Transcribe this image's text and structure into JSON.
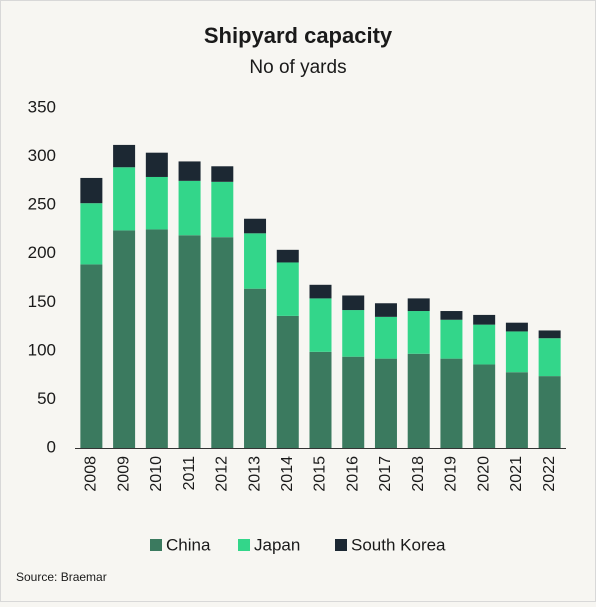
{
  "chart_data": {
    "type": "stacked_bar",
    "title": "Shipyard capacity",
    "subtitle": "No of yards",
    "categories": [
      "2008",
      "2009",
      "2010",
      "2011",
      "2012",
      "2013",
      "2014",
      "2015",
      "2016",
      "2017",
      "2018",
      "2019",
      "2020",
      "2021",
      "2022"
    ],
    "series": [
      {
        "name": "China",
        "color": "#3b7a5f",
        "values": [
          189,
          224,
          225,
          219,
          217,
          164,
          136,
          99,
          94,
          92,
          97,
          92,
          86,
          78,
          74
        ]
      },
      {
        "name": "Japan",
        "color": "#33d68a",
        "values": [
          63,
          65,
          54,
          56,
          57,
          57,
          55,
          55,
          48,
          43,
          44,
          40,
          41,
          42,
          39
        ]
      },
      {
        "name": "South Korea",
        "color": "#1c2833",
        "values": [
          26,
          23,
          25,
          20,
          16,
          15,
          13,
          14,
          15,
          14,
          13,
          9,
          10,
          9,
          8
        ]
      }
    ],
    "ylim": [
      0,
      350
    ],
    "yticks": [
      0,
      50,
      100,
      150,
      200,
      250,
      300,
      350
    ],
    "grid": false,
    "source": "Source: Braemar"
  }
}
